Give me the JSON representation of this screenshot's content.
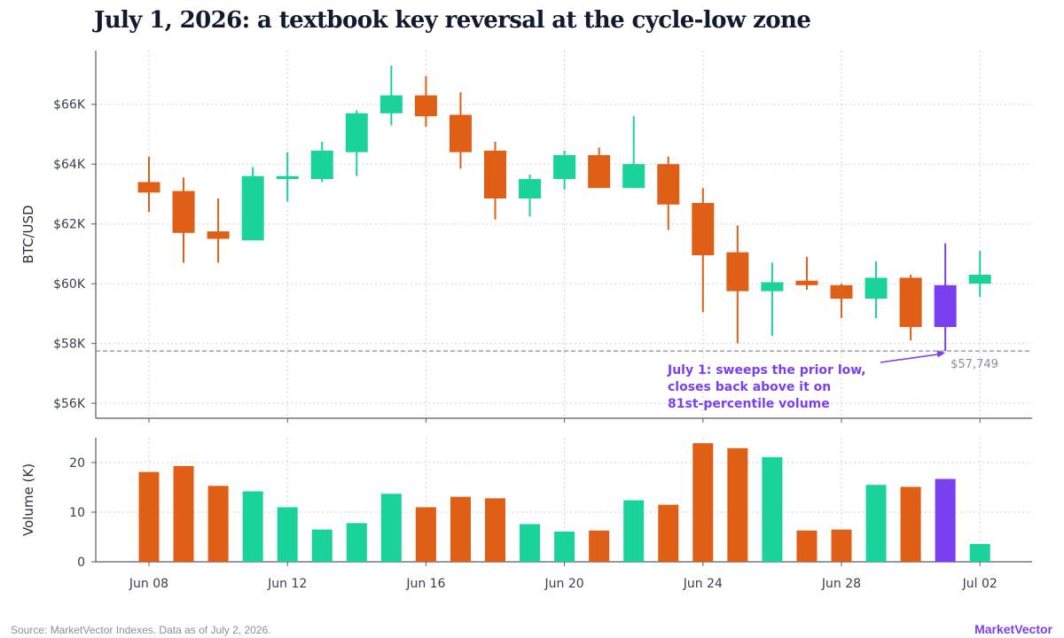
{
  "title": "July 1, 2026: a textbook key reversal at the cycle-low zone",
  "source": "Source: MarketVector Indexes. Data as of July 2, 2026.",
  "brand": "MarketVector",
  "colors": {
    "up": "#19d39b",
    "down": "#df5f16",
    "highlight": "#7b3ff2",
    "grid": "#cfd3da",
    "axis": "#555b66",
    "reference": "#8a8f99"
  },
  "chart_data": [
    {
      "type": "candlestick",
      "ylabel": "BTC/USD",
      "ylim": [
        55500,
        67800
      ],
      "yticks": [
        56000,
        58000,
        60000,
        62000,
        64000,
        66000
      ],
      "ytick_labels": [
        "$56K",
        "$58K",
        "$60K",
        "$62K",
        "$64K",
        "$66K"
      ],
      "xticks": [
        "Jun 08",
        "Jun 12",
        "Jun 16",
        "Jun 20",
        "Jun 24",
        "Jun 28",
        "Jul 02"
      ],
      "grid": true,
      "dates": [
        "2026-06-08",
        "2026-06-09",
        "2026-06-10",
        "2026-06-11",
        "2026-06-12",
        "2026-06-13",
        "2026-06-14",
        "2026-06-15",
        "2026-06-16",
        "2026-06-17",
        "2026-06-18",
        "2026-06-19",
        "2026-06-20",
        "2026-06-21",
        "2026-06-22",
        "2026-06-23",
        "2026-06-24",
        "2026-06-25",
        "2026-06-26",
        "2026-06-27",
        "2026-06-28",
        "2026-06-29",
        "2026-06-30",
        "2026-07-01",
        "2026-07-02"
      ],
      "open": [
        63400,
        63100,
        61750,
        61450,
        63500,
        63500,
        64400,
        65700,
        66300,
        65650,
        64450,
        62850,
        63500,
        64300,
        63200,
        64000,
        62700,
        61050,
        59750,
        60100,
        59950,
        59500,
        60200,
        59950,
        60000
      ],
      "high": [
        64250,
        63550,
        62850,
        63900,
        64400,
        64750,
        65800,
        67300,
        66950,
        66400,
        64750,
        63650,
        64450,
        64550,
        65600,
        64250,
        63200,
        61950,
        60700,
        60900,
        60000,
        60750,
        60300,
        61350,
        61100
      ],
      "low": [
        62400,
        60700,
        60700,
        61450,
        62750,
        63400,
        63600,
        65300,
        65250,
        63850,
        62150,
        62250,
        63150,
        63200,
        63200,
        61800,
        59050,
        58000,
        58250,
        59800,
        58850,
        58850,
        58100,
        57749,
        59550
      ],
      "close": [
        63050,
        61700,
        61500,
        63600,
        63600,
        64450,
        65700,
        66300,
        65600,
        64400,
        62850,
        63500,
        64300,
        63200,
        64000,
        62650,
        60950,
        59750,
        60050,
        59950,
        59500,
        60200,
        58550,
        58550,
        60300
      ],
      "highlight_date": "2026-07-01",
      "reference_line": {
        "value": 57749,
        "label": "$57,749"
      },
      "annotation": [
        "July 1: sweeps the prior low,",
        "closes back above it on",
        "81st-percentile volume"
      ]
    },
    {
      "type": "bar",
      "ylabel": "Volume (K)",
      "ylim": [
        0,
        25
      ],
      "yticks": [
        0,
        10,
        20
      ],
      "ytick_labels": [
        "0",
        "10",
        "20"
      ],
      "xticks": [
        "Jun 08",
        "Jun 12",
        "Jun 16",
        "Jun 20",
        "Jun 24",
        "Jun 28",
        "Jul 02"
      ],
      "grid": true,
      "dates": [
        "2026-06-08",
        "2026-06-09",
        "2026-06-10",
        "2026-06-11",
        "2026-06-12",
        "2026-06-13",
        "2026-06-14",
        "2026-06-15",
        "2026-06-16",
        "2026-06-17",
        "2026-06-18",
        "2026-06-19",
        "2026-06-20",
        "2026-06-21",
        "2026-06-22",
        "2026-06-23",
        "2026-06-24",
        "2026-06-25",
        "2026-06-26",
        "2026-06-27",
        "2026-06-28",
        "2026-06-29",
        "2026-06-30",
        "2026-07-01",
        "2026-07-02"
      ],
      "values": [
        18.1,
        19.3,
        15.3,
        14.2,
        11.0,
        6.5,
        7.8,
        13.7,
        11.0,
        13.1,
        12.8,
        7.6,
        6.1,
        6.3,
        12.4,
        11.5,
        23.9,
        22.9,
        21.1,
        6.3,
        6.5,
        15.5,
        15.1,
        16.7,
        3.6
      ],
      "highlight_date": "2026-07-01"
    }
  ]
}
